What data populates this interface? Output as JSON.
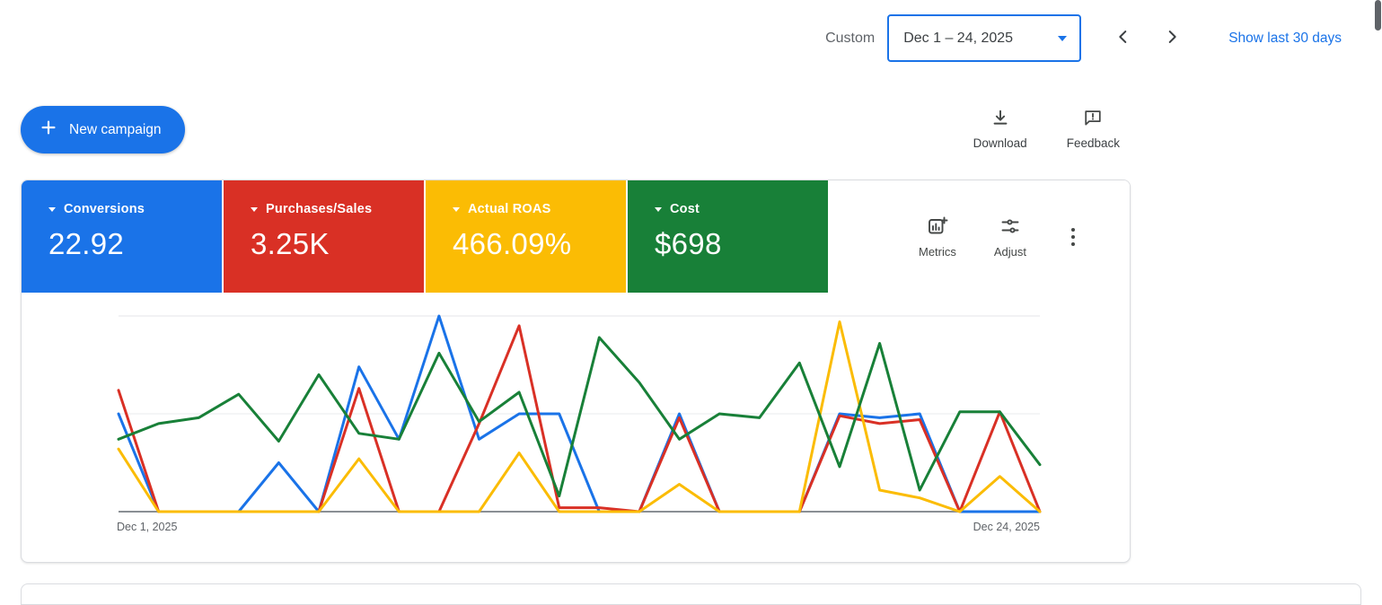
{
  "colors": {
    "accent_blue": "#1a73e8",
    "scorecard_blue": "#1a73e8",
    "scorecard_red": "#d93025",
    "scorecard_yellow": "#fbbc04",
    "scorecard_green": "#188038",
    "gray_text": "#5f6368",
    "dark_text": "#3c4043",
    "border": "#dadce0"
  },
  "topbar": {
    "custom_label": "Custom",
    "date_range": "Dec 1 – 24, 2025",
    "show_last_label": "Show last 30 days"
  },
  "actions": {
    "new_campaign_label": "New campaign",
    "download_label": "Download",
    "feedback_label": "Feedback"
  },
  "scorecards": [
    {
      "label": "Conversions",
      "value": "22.92",
      "color": "#1a73e8"
    },
    {
      "label": "Purchases/Sales",
      "value": "3.25K",
      "color": "#d93025"
    },
    {
      "label": "Actual ROAS",
      "value": "466.09%",
      "color": "#fbbc04"
    },
    {
      "label": "Cost",
      "value": "$698",
      "color": "#188038"
    }
  ],
  "tools": {
    "metrics_label": "Metrics",
    "adjust_label": "Adjust"
  },
  "chart_data": {
    "type": "line",
    "x_start_label": "Dec 1, 2025",
    "x_end_label": "Dec 24, 2025",
    "x": [
      1,
      2,
      3,
      4,
      5,
      6,
      7,
      8,
      9,
      10,
      11,
      12,
      13,
      14,
      15,
      16,
      17,
      18,
      19,
      20,
      21,
      22,
      23,
      24
    ],
    "x_unit": "day of December 2025",
    "ylim": [
      0,
      100
    ],
    "y_note": "no y-axis shown; values estimated from pixels, normalized 0-100 per metric (gridlines at 0, 50, 100)",
    "grid": true,
    "legend_position": "none (series colors match scorecards)",
    "series": [
      {
        "name": "Conversions",
        "color": "#1a73e8",
        "values": [
          50,
          0,
          0,
          0,
          25,
          0,
          74,
          37,
          100,
          37,
          50,
          50,
          0,
          0,
          50,
          0,
          0,
          0,
          50,
          48,
          50,
          0,
          0,
          0
        ]
      },
      {
        "name": "Purchases/Sales",
        "color": "#d93025",
        "values": [
          62,
          0,
          0,
          0,
          0,
          0,
          63,
          0,
          0,
          45,
          95,
          2,
          2,
          0,
          48,
          0,
          0,
          0,
          49,
          45,
          47,
          0,
          51,
          0
        ]
      },
      {
        "name": "Actual ROAS",
        "color": "#fbbc04",
        "values": [
          32,
          0,
          0,
          0,
          0,
          0,
          27,
          0,
          0,
          0,
          30,
          0,
          0,
          0,
          14,
          0,
          0,
          0,
          97,
          11,
          7,
          0,
          18,
          0
        ]
      },
      {
        "name": "Cost",
        "color": "#188038",
        "values": [
          37,
          45,
          48,
          60,
          36,
          70,
          40,
          37,
          81,
          46,
          61,
          8,
          89,
          66,
          37,
          50,
          48,
          76,
          23,
          86,
          11,
          51,
          51,
          24
        ]
      }
    ]
  }
}
